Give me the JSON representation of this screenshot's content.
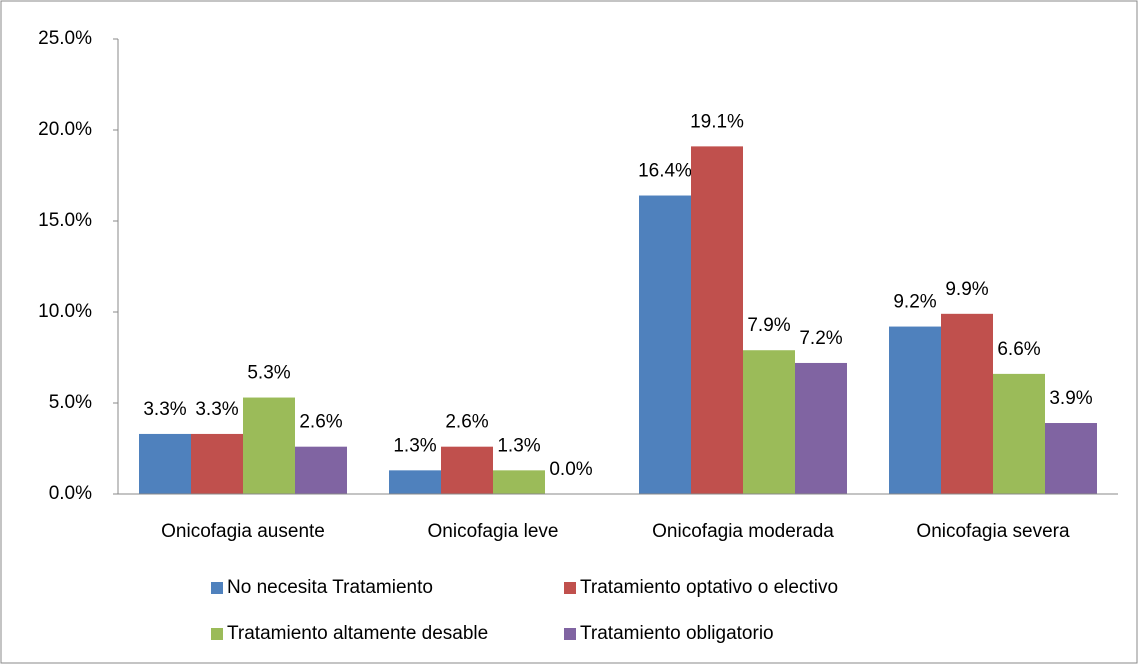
{
  "chart_data": {
    "type": "bar",
    "categories": [
      "Onicofagia ausente",
      "Onicofagia leve",
      "Onicofagia moderada",
      "Onicofagia severa"
    ],
    "series": [
      {
        "name": "No necesita Tratamiento",
        "color": "#4f81bd",
        "values": [
          3.3,
          1.3,
          16.4,
          9.2
        ],
        "value_labels": [
          "3.3%",
          "1.3%",
          "16.4%",
          "9.2%"
        ]
      },
      {
        "name": "Tratamiento optativo o electivo",
        "color": "#c0504d",
        "values": [
          3.3,
          2.6,
          19.1,
          9.9
        ],
        "value_labels": [
          "3.3%",
          "2.6%",
          "19.1%",
          "9.9%"
        ]
      },
      {
        "name": "Tratamiento altamente desable",
        "color": "#9bbb59",
        "values": [
          5.3,
          1.3,
          7.9,
          6.6
        ],
        "value_labels": [
          "5.3%",
          "1.3%",
          "7.9%",
          "6.6%"
        ]
      },
      {
        "name": "Tratamiento obligatorio",
        "color": "#8064a2",
        "values": [
          2.6,
          0.0,
          7.2,
          3.9
        ],
        "value_labels": [
          "2.6%",
          "0.0%",
          "7.2%",
          "3.9%"
        ]
      }
    ],
    "ylim": [
      0,
      25
    ],
    "yticks": [
      {
        "value": 0,
        "label": "0.0%"
      },
      {
        "value": 5,
        "label": "5.0%"
      },
      {
        "value": 10,
        "label": "10.0%"
      },
      {
        "value": 15,
        "label": "15.0%"
      },
      {
        "value": 20,
        "label": "20.0%"
      },
      {
        "value": 25,
        "label": "25.0%"
      }
    ],
    "legend": "bottom",
    "grid": false
  }
}
